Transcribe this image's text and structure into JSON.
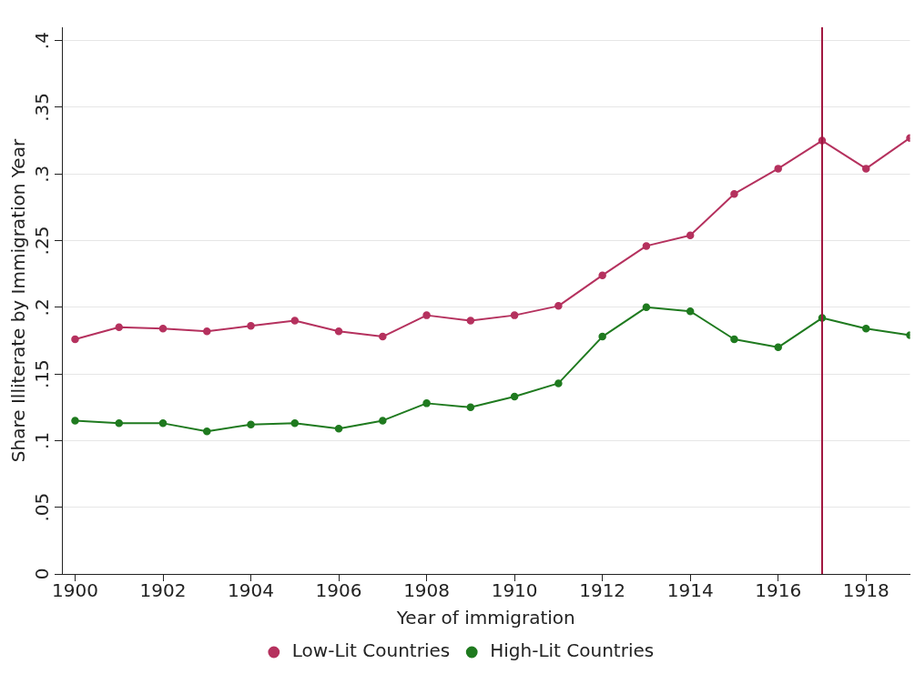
{
  "chart_data": {
    "type": "line",
    "xlabel": "Year of immigration",
    "ylabel": "Share Illiterate by Immigration Year",
    "x": [
      1900,
      1901,
      1902,
      1903,
      1904,
      1905,
      1906,
      1907,
      1908,
      1909,
      1910,
      1911,
      1912,
      1913,
      1914,
      1915,
      1916,
      1917,
      1918,
      1919
    ],
    "series": [
      {
        "name": "Low-Lit Countries",
        "color": "#b5315e",
        "values": [
          0.176,
          0.185,
          0.184,
          0.182,
          0.186,
          0.19,
          0.182,
          0.178,
          0.194,
          0.19,
          0.194,
          0.201,
          0.224,
          0.246,
          0.254,
          0.285,
          0.304,
          0.325,
          0.304,
          0.327
        ]
      },
      {
        "name": "High-Lit Countries",
        "color": "#1f7a1f",
        "values": [
          0.115,
          0.113,
          0.113,
          0.107,
          0.112,
          0.113,
          0.109,
          0.115,
          0.128,
          0.125,
          0.133,
          0.143,
          0.178,
          0.2,
          0.197,
          0.176,
          0.17,
          0.192,
          0.184,
          0.179
        ]
      }
    ],
    "xlim": [
      1899.7,
      1919
    ],
    "xticks": [
      1900,
      1902,
      1904,
      1906,
      1908,
      1910,
      1912,
      1914,
      1916,
      1918
    ],
    "ylim": [
      0,
      0.41
    ],
    "yticks": [
      {
        "value": 0,
        "label": "0"
      },
      {
        "value": 0.05,
        "label": ".05"
      },
      {
        "value": 0.1,
        "label": ".1"
      },
      {
        "value": 0.15,
        "label": ".15"
      },
      {
        "value": 0.2,
        "label": ".2"
      },
      {
        "value": 0.25,
        "label": ".25"
      },
      {
        "value": 0.3,
        "label": ".3"
      },
      {
        "value": 0.35,
        "label": ".35"
      },
      {
        "value": 0.4,
        "label": ".4"
      }
    ],
    "ref_lines": [
      {
        "axis": "x",
        "value": 1917,
        "color": "#a0153e"
      }
    ],
    "grid": "y",
    "legend": "bottom",
    "marker": "circle",
    "line_style": "solid"
  }
}
